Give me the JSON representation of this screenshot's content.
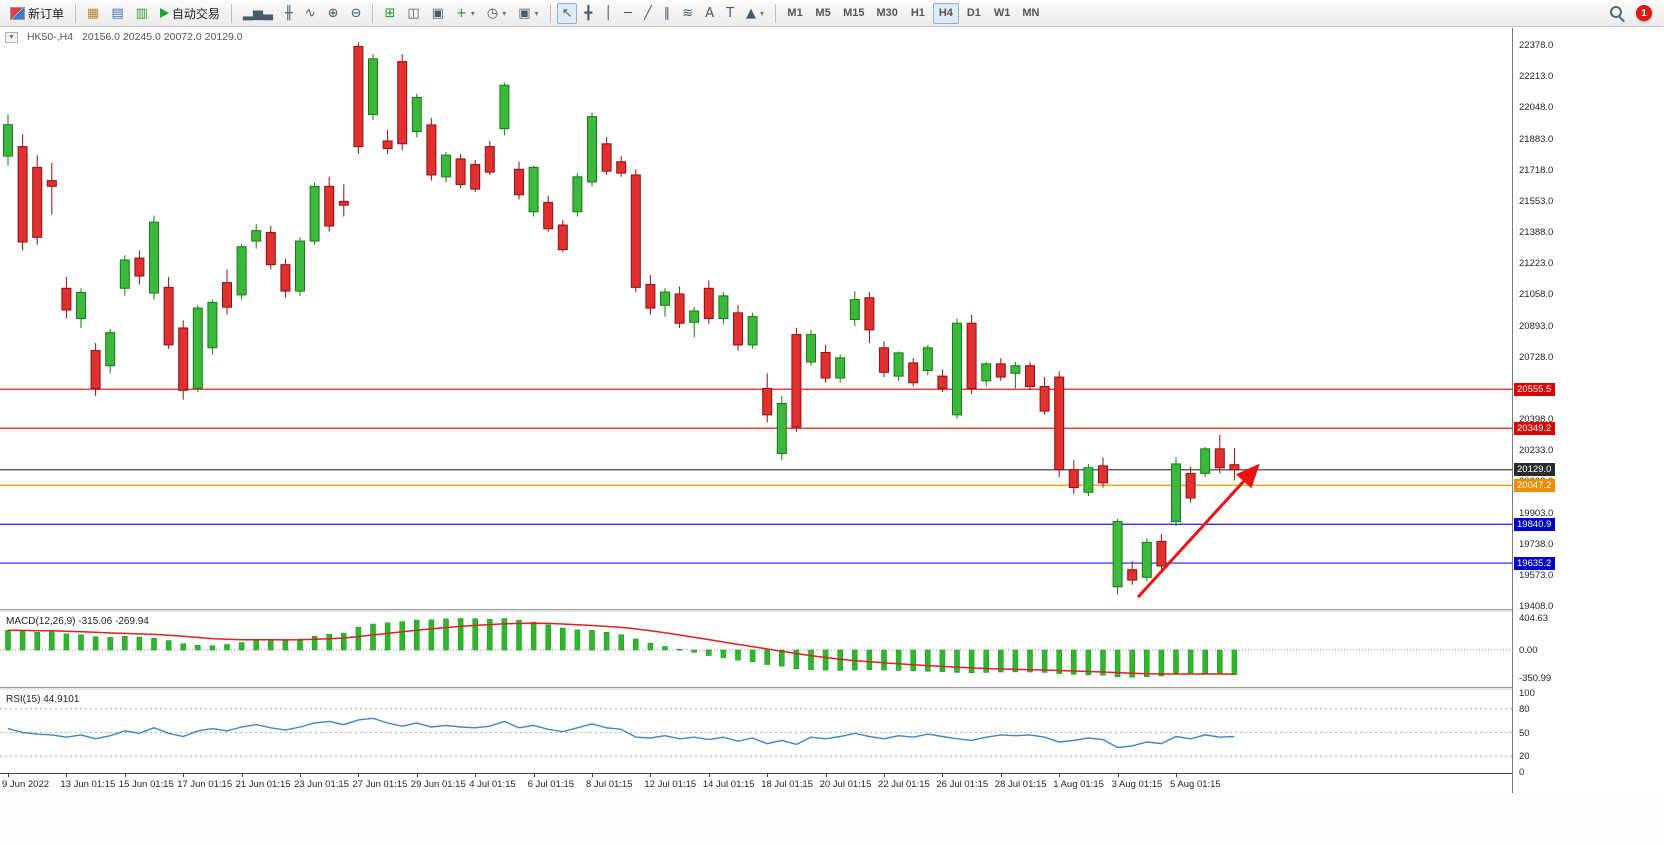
{
  "toolbar": {
    "new_order_label": "新订单",
    "auto_trading_label": "自动交易",
    "notification_badge": "1",
    "timeframes": [
      "M1",
      "M5",
      "M15",
      "M30",
      "H1",
      "H4",
      "D1",
      "W1",
      "MN"
    ],
    "active_timeframe": "H4",
    "icon_groups": {
      "panels": [
        {
          "id": "market-watch",
          "glyph": "▦",
          "color": "#b8862c"
        },
        {
          "id": "navigator",
          "glyph": "▤",
          "color": "#3c6eb4"
        },
        {
          "id": "terminal",
          "glyph": "▥",
          "color": "#3f9d3f"
        }
      ],
      "chart_types": [
        {
          "id": "bar-chart",
          "glyph": "▂▅▃"
        },
        {
          "id": "candlestick-chart",
          "glyph": "╫"
        },
        {
          "id": "line-chart",
          "glyph": "∿"
        }
      ],
      "zoom": [
        {
          "id": "zoom-in",
          "glyph": "⊕"
        },
        {
          "id": "zoom-out",
          "glyph": "⊖"
        }
      ],
      "windows": [
        {
          "id": "tile-windows",
          "glyph": "⊞",
          "color": "#2e8f2e"
        },
        {
          "id": "cascade-windows",
          "glyph": "◫"
        },
        {
          "id": "auto-arrange",
          "glyph": "▣"
        }
      ],
      "chart_tools": [
        {
          "id": "new-chart",
          "glyph": "+",
          "color": "#2e8f2e",
          "caret": true
        },
        {
          "id": "auto-scroll",
          "glyph": "◷",
          "caret": true
        },
        {
          "id": "snapshot",
          "glyph": "▣",
          "caret": true
        }
      ],
      "line_studies": [
        {
          "id": "cursor",
          "glyph": "↖",
          "active": true
        },
        {
          "id": "crosshair",
          "glyph": "╋"
        },
        {
          "id": "vertical-line",
          "glyph": "│"
        },
        {
          "id": "horizontal-line",
          "glyph": "─"
        },
        {
          "id": "trendline",
          "glyph": "╱"
        },
        {
          "id": "equidistant-channel",
          "glyph": "∥"
        },
        {
          "id": "fibonacci",
          "glyph": "≋"
        },
        {
          "id": "text",
          "glyph": "A"
        },
        {
          "id": "text-label",
          "glyph": "T"
        },
        {
          "id": "shapes",
          "glyph": "▲",
          "caret": true
        }
      ]
    }
  },
  "chart": {
    "title": "HK50-,H4",
    "quote": "20156.0 20245.0 20072.0 20129.0"
  },
  "chart_data": {
    "type": "candlestick",
    "symbol": "HK50-",
    "timeframe": "H4",
    "ohlc_display": {
      "open": "20156.0",
      "high": "20245.0",
      "low": "20072.0",
      "close": "20129.0"
    },
    "y_range": [
      19408,
      22378
    ],
    "y_axis_labels": [
      22378,
      22213,
      22048,
      21883,
      21718,
      21553,
      21388,
      21223,
      21058,
      20893,
      20728,
      20563,
      20398,
      20233,
      20068,
      19903,
      19738,
      19573,
      19408
    ],
    "colors": {
      "up": "#3cb83c",
      "up_border": "#167a16",
      "down": "#e03030",
      "down_border": "#8f1010",
      "background": "#ffffff"
    },
    "h_lines": [
      {
        "price": 20555.5,
        "color": "#ff1a1a",
        "badge": "20555.5",
        "badge_color": "#dd0000"
      },
      {
        "price": 20349.2,
        "color": "#ff1a1a",
        "badge": "20349.2",
        "badge_color": "#dd0000"
      },
      {
        "price": 20129.0,
        "color": "#333333",
        "badge": "20129.0",
        "badge_color": "#2b2b2b"
      },
      {
        "price": 20047.2,
        "color": "#f59300",
        "badge": "20047.2",
        "badge_color": "#ef8b00"
      },
      {
        "price": 19840.9,
        "color": "#1a1aff",
        "badge": "19840.9",
        "badge_color": "#0000cc"
      },
      {
        "price": 19635.2,
        "color": "#1a1aff",
        "badge": "19635.2",
        "badge_color": "#0000cc"
      }
    ],
    "arrow": {
      "from_index": 77.4,
      "from_price": 19455,
      "to_index": 85.6,
      "to_price": 20150,
      "color": "#ee1111"
    },
    "candles": [
      [
        21790,
        22010,
        21740,
        21956
      ],
      [
        21840,
        21905,
        21290,
        21335
      ],
      [
        21730,
        21795,
        21320,
        21360
      ],
      [
        21660,
        21755,
        21480,
        21630
      ],
      [
        21090,
        21150,
        20930,
        20975
      ],
      [
        20930,
        21090,
        20880,
        21068
      ],
      [
        20760,
        20800,
        20520,
        20560
      ],
      [
        20680,
        20875,
        20640,
        20855
      ],
      [
        21090,
        21265,
        21050,
        21240
      ],
      [
        21250,
        21290,
        21110,
        21155
      ],
      [
        21065,
        21475,
        21030,
        21440
      ],
      [
        21095,
        21150,
        20770,
        20790
      ],
      [
        20880,
        20920,
        20500,
        20550
      ],
      [
        20560,
        21000,
        20540,
        20985
      ],
      [
        20775,
        21030,
        20740,
        21015
      ],
      [
        21120,
        21190,
        20950,
        20990
      ],
      [
        21055,
        21325,
        21030,
        21310
      ],
      [
        21340,
        21430,
        21300,
        21395
      ],
      [
        21385,
        21420,
        21190,
        21215
      ],
      [
        21215,
        21245,
        21040,
        21075
      ],
      [
        21075,
        21360,
        21050,
        21340
      ],
      [
        21340,
        21650,
        21320,
        21630
      ],
      [
        21630,
        21680,
        21390,
        21420
      ],
      [
        21550,
        21640,
        21470,
        21530
      ],
      [
        22370,
        22392,
        21800,
        21840
      ],
      [
        22010,
        22330,
        21980,
        22305
      ],
      [
        21870,
        21930,
        21800,
        21830
      ],
      [
        22290,
        22330,
        21820,
        21855
      ],
      [
        21920,
        22120,
        21890,
        22100
      ],
      [
        21955,
        21990,
        21660,
        21690
      ],
      [
        21680,
        21810,
        21650,
        21795
      ],
      [
        21775,
        21800,
        21620,
        21640
      ],
      [
        21745,
        21770,
        21600,
        21615
      ],
      [
        21840,
        21870,
        21690,
        21705
      ],
      [
        21935,
        22180,
        21900,
        22165
      ],
      [
        21720,
        21760,
        21560,
        21585
      ],
      [
        21495,
        21740,
        21470,
        21730
      ],
      [
        21545,
        21580,
        21390,
        21405
      ],
      [
        21425,
        21450,
        21280,
        21295
      ],
      [
        21495,
        21700,
        21470,
        21680
      ],
      [
        21653,
        22020,
        21630,
        21999
      ],
      [
        21855,
        21890,
        21690,
        21710
      ],
      [
        21760,
        21790,
        21680,
        21700
      ],
      [
        21690,
        21720,
        21070,
        21095
      ],
      [
        21110,
        21160,
        20950,
        20985
      ],
      [
        21000,
        21090,
        20940,
        21070
      ],
      [
        21060,
        21100,
        20880,
        20905
      ],
      [
        20910,
        20990,
        20830,
        20970
      ],
      [
        21090,
        21130,
        20900,
        20930
      ],
      [
        20930,
        21070,
        20900,
        21050
      ],
      [
        20960,
        21000,
        20760,
        20790
      ],
      [
        20790,
        20960,
        20770,
        20940
      ],
      [
        20560,
        20640,
        20380,
        20420
      ],
      [
        20215,
        20520,
        20180,
        20480
      ],
      [
        20845,
        20880,
        20330,
        20355
      ],
      [
        20700,
        20870,
        20680,
        20845
      ],
      [
        20750,
        20790,
        20590,
        20615
      ],
      [
        20615,
        20740,
        20590,
        20722
      ],
      [
        20925,
        21075,
        20890,
        21030
      ],
      [
        21040,
        21070,
        20800,
        20870
      ],
      [
        20775,
        20810,
        20620,
        20645
      ],
      [
        20625,
        20755,
        20600,
        20748
      ],
      [
        20695,
        20720,
        20570,
        20590
      ],
      [
        20655,
        20790,
        20630,
        20775
      ],
      [
        20625,
        20660,
        20540,
        20560
      ],
      [
        20420,
        20930,
        20400,
        20905
      ],
      [
        20905,
        20950,
        20530,
        20560
      ],
      [
        20600,
        20700,
        20570,
        20690
      ],
      [
        20690,
        20720,
        20600,
        20620
      ],
      [
        20640,
        20700,
        20560,
        20680
      ],
      [
        20680,
        20700,
        20550,
        20570
      ],
      [
        20570,
        20620,
        20420,
        20440
      ],
      [
        20620,
        20650,
        20090,
        20130
      ],
      [
        20130,
        20180,
        20000,
        20035
      ],
      [
        20010,
        20160,
        19990,
        20140
      ],
      [
        20150,
        20195,
        20035,
        20060
      ],
      [
        19510,
        19870,
        19470,
        19855
      ],
      [
        19600,
        19645,
        19520,
        19545
      ],
      [
        19560,
        19765,
        19540,
        19745
      ],
      [
        19750,
        19790,
        19600,
        19620
      ],
      [
        19855,
        20195,
        19830,
        20160
      ],
      [
        20110,
        20145,
        19955,
        19980
      ],
      [
        20110,
        20250,
        20090,
        20240
      ],
      [
        20240,
        20315,
        20110,
        20140
      ],
      [
        20156,
        20245,
        20072,
        20129
      ]
    ],
    "x_labels": [
      "9 Jun 2022",
      "13 Jun 01:15",
      "15 Jun 01:15",
      "17 Jun 01:15",
      "21 Jun 01:15",
      "23 Jun 01:15",
      "27 Jun 01:15",
      "29 Jun 01:15",
      "4 Jul 01:15",
      "6 Jul 01:15",
      "8 Jul 01:15",
      "12 Jul 01:15",
      "14 Jul 01:15",
      "18 Jul 01:15",
      "20 Jul 01:15",
      "22 Jul 01:15",
      "26 Jul 01:15",
      "28 Jul 01:15",
      "1 Aug 01:15",
      "3 Aug 01:15",
      "5 Aug 01:15"
    ],
    "x_label_every": 4,
    "macd": {
      "label": "MACD(12,26,9)",
      "values_text": "-315.06 -269.94",
      "histogram_color": "#2eb82e",
      "signal_color": "#e02020",
      "scale": [
        {
          "value": 404.63,
          "text": "404.63"
        },
        {
          "value": 0,
          "text": "0.00"
        },
        {
          "value": -350.99,
          "text": "-350.99"
        }
      ],
      "values": [
        250,
        240,
        225,
        230,
        205,
        195,
        170,
        160,
        175,
        165,
        150,
        120,
        80,
        60,
        55,
        70,
        95,
        120,
        130,
        120,
        140,
        175,
        200,
        215,
        290,
        330,
        345,
        360,
        380,
        385,
        395,
        400,
        398,
        390,
        400,
        380,
        355,
        320,
        280,
        255,
        250,
        225,
        195,
        140,
        85,
        45,
        10,
        -30,
        -70,
        -100,
        -130,
        -150,
        -185,
        -205,
        -240,
        -250,
        -255,
        -260,
        -255,
        -250,
        -255,
        -260,
        -265,
        -270,
        -275,
        -285,
        -290,
        -285,
        -280,
        -278,
        -280,
        -285,
        -300,
        -310,
        -315,
        -320,
        -340,
        -345,
        -340,
        -330,
        -310,
        -305,
        -300,
        -308,
        -315.06
      ]
    },
    "rsi": {
      "label": "RSI(15)",
      "value_text": "44.9101",
      "line_color": "#3f86c8",
      "levels": [
        80,
        50,
        20
      ],
      "scale": [
        {
          "value": 100,
          "text": "100"
        },
        {
          "value": 80,
          "text": "80"
        },
        {
          "value": 50,
          "text": "50"
        },
        {
          "value": 20,
          "text": "20"
        },
        {
          "value": 0,
          "text": "0"
        }
      ],
      "values": [
        55,
        50,
        48,
        47,
        44,
        47,
        42,
        46,
        52,
        49,
        56,
        49,
        45,
        52,
        55,
        52,
        57,
        60,
        56,
        53,
        57,
        62,
        64,
        60,
        66,
        68,
        62,
        58,
        62,
        57,
        59,
        57,
        56,
        58,
        64,
        56,
        59,
        54,
        51,
        56,
        61,
        56,
        54,
        44,
        43,
        46,
        42,
        44,
        41,
        44,
        39,
        43,
        36,
        40,
        35,
        44,
        42,
        45,
        49,
        45,
        42,
        46,
        44,
        48,
        45,
        42,
        40,
        44,
        47,
        46,
        47,
        44,
        38,
        40,
        43,
        41,
        31,
        33,
        38,
        36,
        45,
        42,
        47,
        44,
        44.91
      ]
    }
  }
}
